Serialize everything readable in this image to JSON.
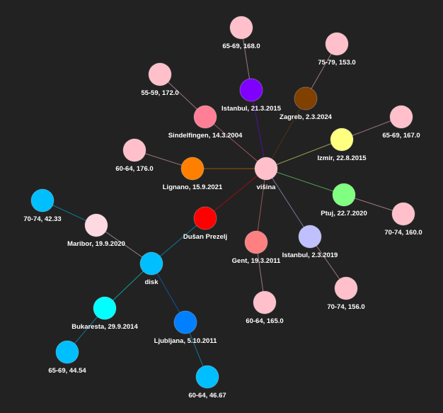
{
  "background": "#222222",
  "graph": {
    "nodes": [
      {
        "id": "visina",
        "label": "višina",
        "color": "#ffc0cb"
      },
      {
        "id": "prezelj",
        "label": "Dušan Prezelj",
        "color": "#ff0000"
      },
      {
        "id": "disk",
        "label": "disk",
        "color": "#00bfff"
      },
      {
        "id": "maribor",
        "label": "Maribor, 19.9.2020",
        "color": "#ffd9e2"
      },
      {
        "id": "maribor_leaf",
        "label": "70-74, 42.33",
        "color": "#00bfff"
      },
      {
        "id": "bukaresta",
        "label": "Bukaresta, 29.9.2014",
        "color": "#00ffff"
      },
      {
        "id": "bukaresta_leaf",
        "label": "65-69, 44.54",
        "color": "#00bfff"
      },
      {
        "id": "ljubljana",
        "label": "Ljubljana, 5.10.2011",
        "color": "#0080ff"
      },
      {
        "id": "ljubljana_leaf",
        "label": "60-64, 46.67",
        "color": "#00bfff"
      },
      {
        "id": "istanbul1",
        "label": "Istanbul, 21.3.2015",
        "color": "#8000ff"
      },
      {
        "id": "istanbul1_leaf",
        "label": "65-69, 168.0",
        "color": "#ffc0cb"
      },
      {
        "id": "zagreb",
        "label": "Zagreb, 2.3.2024",
        "color": "#804000"
      },
      {
        "id": "zagreb_leaf",
        "label": "75-79, 153.0",
        "color": "#ffc0cb"
      },
      {
        "id": "sindelfingen",
        "label": "Sindelfingen, 14.3.2004",
        "color": "#ff8096"
      },
      {
        "id": "sindelfingen_leaf",
        "label": "55-59, 172.0",
        "color": "#ffc0cb"
      },
      {
        "id": "lignano",
        "label": "Lignano, 15.9.2021",
        "color": "#ff8000"
      },
      {
        "id": "lignano_leaf",
        "label": "60-64, 176.0",
        "color": "#ffc0cb"
      },
      {
        "id": "izmir",
        "label": "Izmir, 22.8.2015",
        "color": "#ffff80"
      },
      {
        "id": "izmir_leaf",
        "label": "65-69, 167.0",
        "color": "#ffc0cb"
      },
      {
        "id": "ptuj",
        "label": "Ptuj, 22.7.2020",
        "color": "#80ff80"
      },
      {
        "id": "ptuj_leaf",
        "label": "70-74, 160.0",
        "color": "#ffc0cb"
      },
      {
        "id": "gent",
        "label": "Gent, 19.3.2011",
        "color": "#ff8080"
      },
      {
        "id": "gent_leaf",
        "label": "60-64, 165.0",
        "color": "#ffc0cb"
      },
      {
        "id": "istanbul2",
        "label": "Istanbul, 2.3.2019",
        "color": "#c0c0ff"
      },
      {
        "id": "istanbul2_leaf",
        "label": "70-74, 156.0",
        "color": "#ffc0cb"
      }
    ],
    "edges": [
      [
        "visina",
        "prezelj"
      ],
      [
        "visina",
        "istanbul1"
      ],
      [
        "visina",
        "zagreb"
      ],
      [
        "visina",
        "sindelfingen"
      ],
      [
        "visina",
        "lignano"
      ],
      [
        "visina",
        "izmir"
      ],
      [
        "visina",
        "ptuj"
      ],
      [
        "visina",
        "gent"
      ],
      [
        "visina",
        "istanbul2"
      ],
      [
        "prezelj",
        "disk"
      ],
      [
        "disk",
        "maribor"
      ],
      [
        "disk",
        "bukaresta"
      ],
      [
        "disk",
        "ljubljana"
      ],
      [
        "maribor",
        "maribor_leaf"
      ],
      [
        "bukaresta",
        "bukaresta_leaf"
      ],
      [
        "ljubljana",
        "ljubljana_leaf"
      ],
      [
        "istanbul1",
        "istanbul1_leaf"
      ],
      [
        "zagreb",
        "zagreb_leaf"
      ],
      [
        "sindelfingen",
        "sindelfingen_leaf"
      ],
      [
        "lignano",
        "lignano_leaf"
      ],
      [
        "izmir",
        "izmir_leaf"
      ],
      [
        "ptuj",
        "ptuj_leaf"
      ],
      [
        "gent",
        "gent_leaf"
      ],
      [
        "istanbul2",
        "istanbul2_leaf"
      ]
    ]
  }
}
